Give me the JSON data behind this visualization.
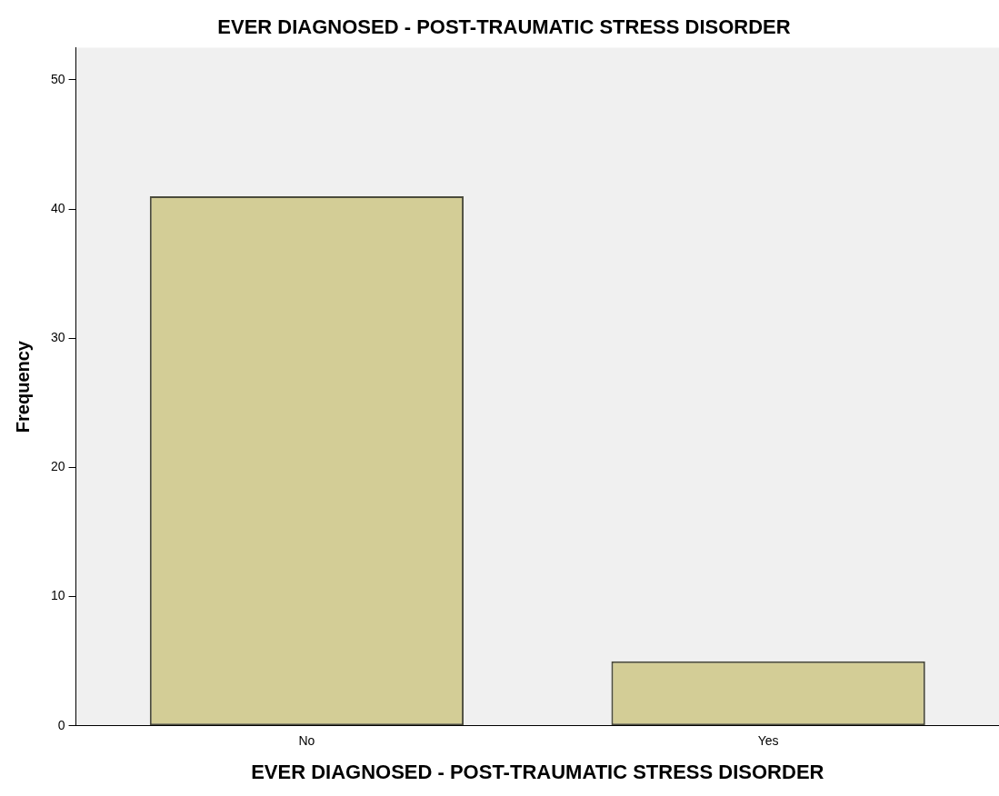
{
  "chart_data": {
    "type": "bar",
    "title": "EVER DIAGNOSED - POST-TRAUMATIC STRESS DISORDER",
    "xlabel": "EVER DIAGNOSED - POST-TRAUMATIC STRESS DISORDER",
    "ylabel": "Frequency",
    "categories": [
      "No",
      "Yes"
    ],
    "values": [
      41,
      5
    ],
    "color": "#d3cd96",
    "ylim": [
      0,
      52.5
    ],
    "yticks": [
      0,
      10,
      20,
      30,
      40,
      50
    ],
    "grid": false,
    "legend": false
  }
}
